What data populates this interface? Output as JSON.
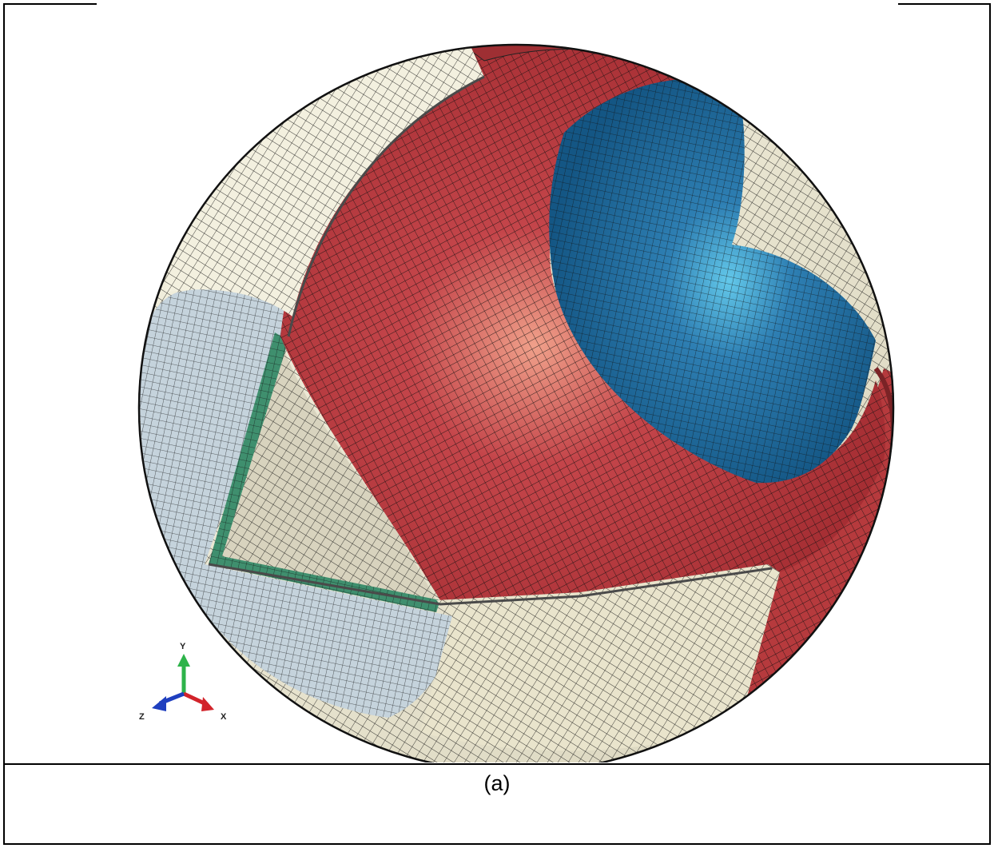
{
  "caption": "(a)",
  "triad": {
    "y_label": "Y",
    "x_label": "X",
    "z_label": "Z",
    "y_color": "#2db34a",
    "x_color": "#d2232a",
    "z_color": "#1f3fbf"
  },
  "colors": {
    "red": "#b8393b",
    "cream": "#ece8d2",
    "blue": "#1a5f8e",
    "lightblue": "#c7d6df",
    "green": "#3f8f6e"
  }
}
